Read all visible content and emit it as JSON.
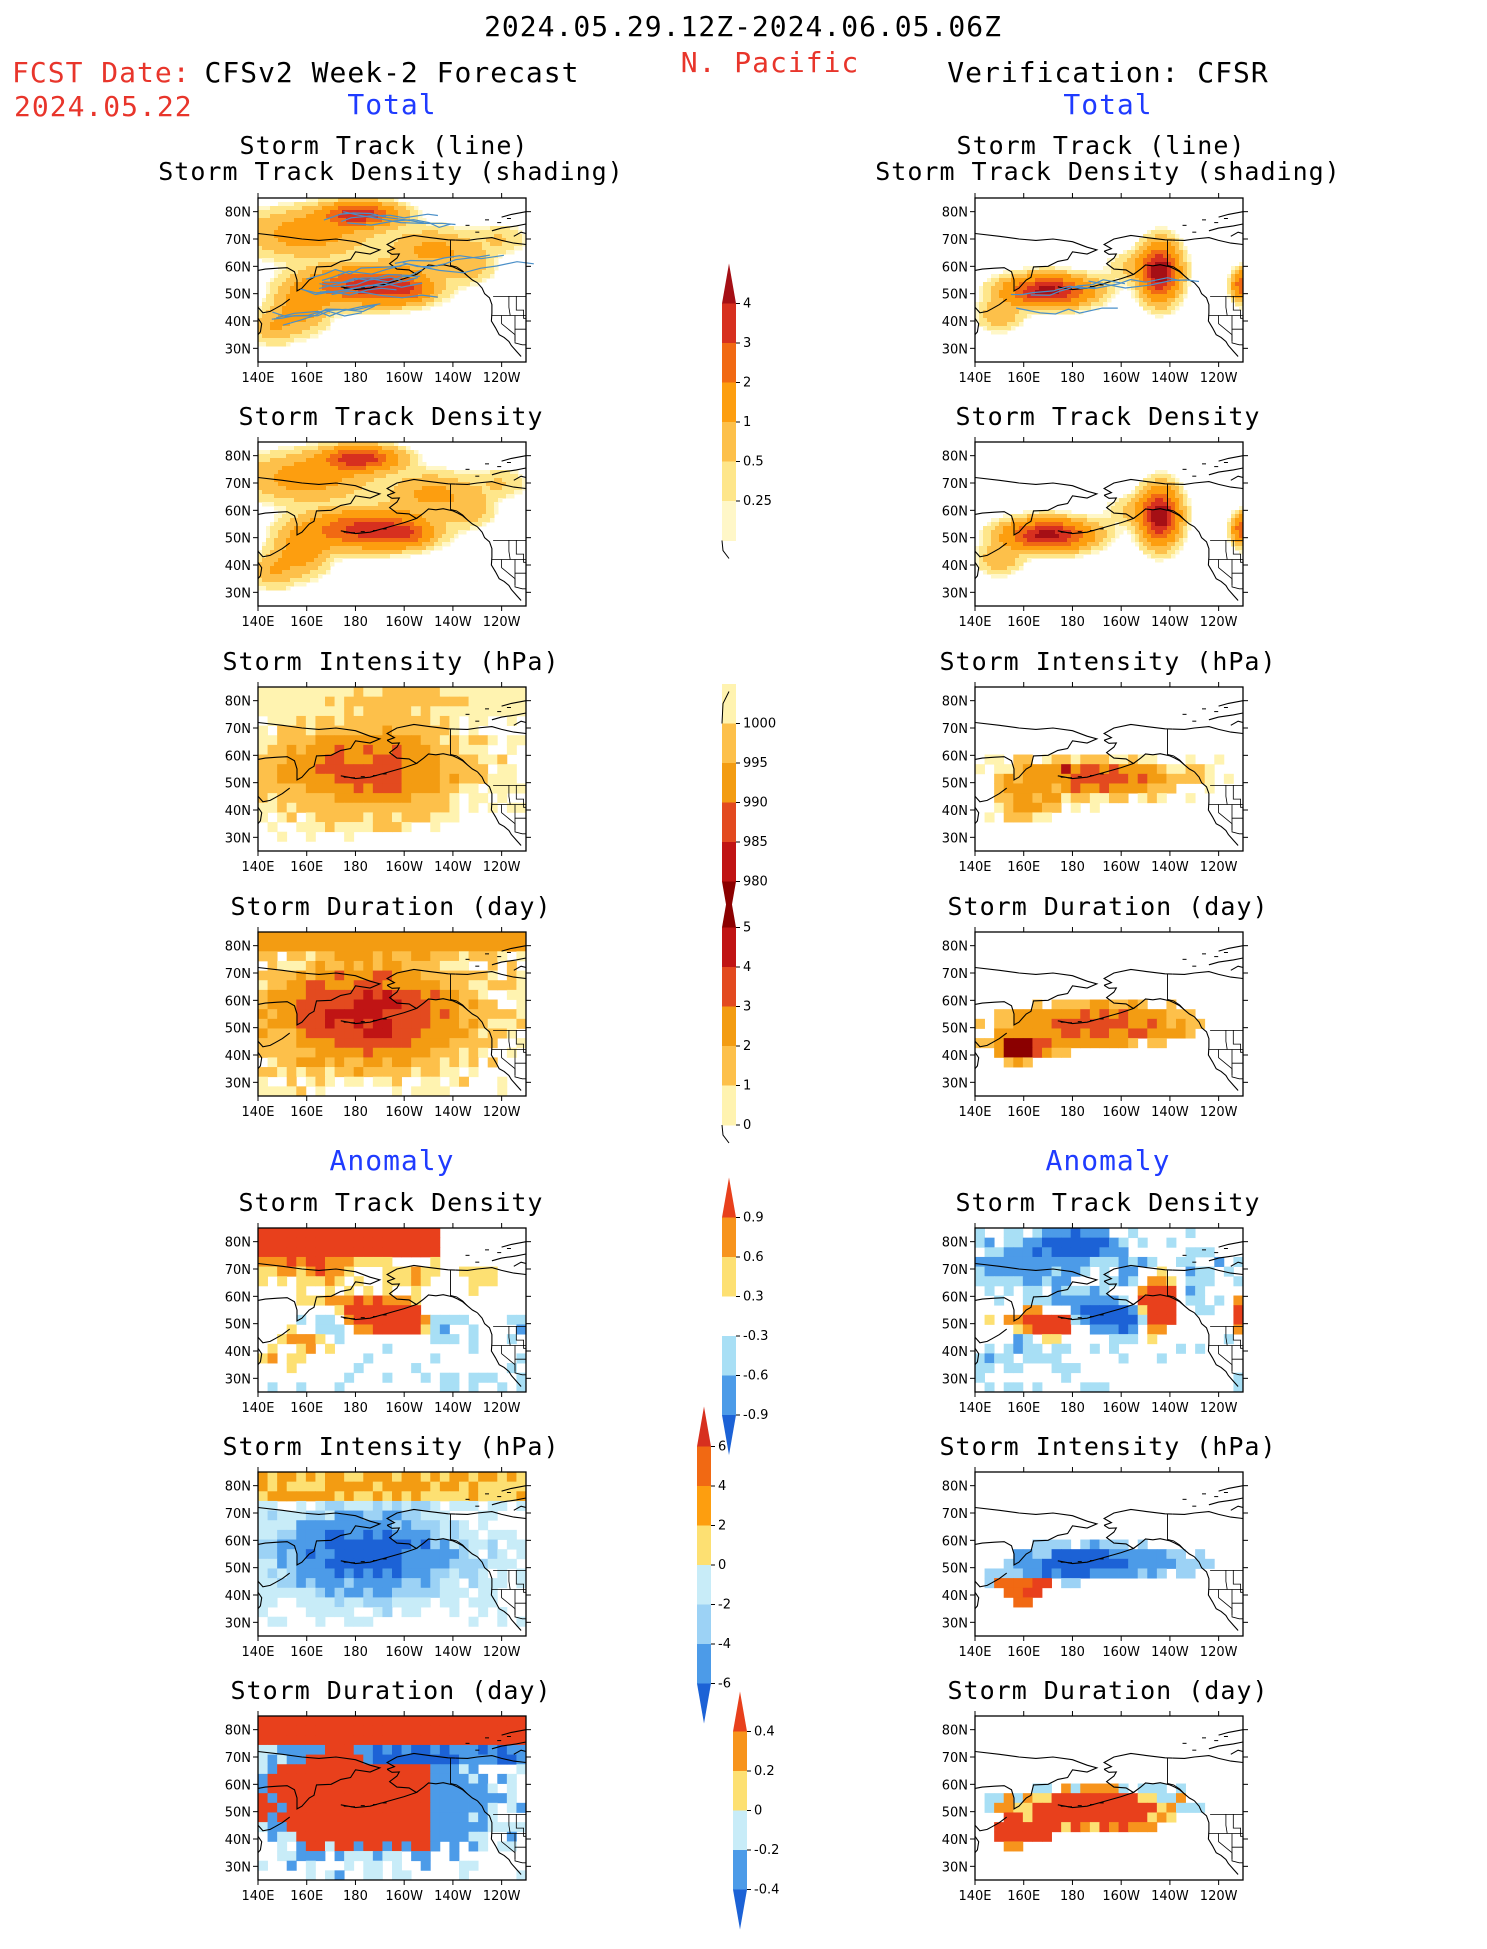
{
  "header": {
    "date_range": "2024.05.29.12Z-2024.06.05.06Z",
    "region": "N. Pacific",
    "fcst_label": "FCST Date:",
    "fcst_date": "2024.05.22",
    "left_title": "CFSv2 Week-2 Forecast",
    "right_title": "Verification: CFSR"
  },
  "sections": {
    "total": "Total",
    "anomaly": "Anomaly"
  },
  "panel_titles": {
    "track_line": "Storm Track (line)",
    "track_shading": "Storm Track Density (shading)",
    "density": "Storm Track Density",
    "intensity": "Storm Intensity (hPa)",
    "duration": "Storm Duration (day)"
  },
  "map_axes": {
    "y_labels": [
      "80N",
      "70N",
      "60N",
      "50N",
      "40N",
      "30N"
    ],
    "x_labels": [
      "140E",
      "160E",
      "180",
      "160W",
      "140W",
      "120W"
    ]
  },
  "colorbars": {
    "density": {
      "labels": [
        "4",
        "3",
        "2",
        "1",
        "0.5",
        "0.25"
      ],
      "colors": [
        "#a50f15",
        "#d7301f",
        "#f16913",
        "#fd9e0f",
        "#fdc04a",
        "#fee68a",
        "#fff7c8"
      ]
    },
    "intensity": {
      "labels": [
        "1000",
        "995",
        "990",
        "985",
        "980"
      ],
      "colors": [
        "#fff3b0",
        "#fdc04a",
        "#f39c12",
        "#e34a1f",
        "#c01414",
        "#8b0000"
      ]
    },
    "duration": {
      "labels": [
        "5",
        "4",
        "3",
        "2",
        "1",
        "0"
      ],
      "colors": [
        "#8b0000",
        "#c01414",
        "#e34a1f",
        "#f39c12",
        "#fdc04a",
        "#fff3b0"
      ]
    },
    "anom_density": {
      "labels": [
        "0.9",
        "0.6",
        "0.3",
        "-0.3",
        "-0.6",
        "-0.9"
      ],
      "colors": [
        "#e8401c",
        "#f7941d",
        "#fde072",
        "#ffffff",
        "#a8dff5",
        "#4c9be8",
        "#1c62d6"
      ]
    },
    "anom_intensity": {
      "labels": [
        "6",
        "4",
        "2",
        "0",
        "-2",
        "-4",
        "-6"
      ],
      "colors": [
        "#d7301f",
        "#f16913",
        "#fd9e0f",
        "#fde072",
        "#c8ecf8",
        "#9cd2f5",
        "#4c9be8",
        "#1c62d6"
      ]
    },
    "anom_duration": {
      "labels": [
        "0.4",
        "0.2",
        "0",
        "-0.2",
        "-0.4"
      ],
      "colors": [
        "#e8401c",
        "#f7941d",
        "#fde072",
        "#c8ecf8",
        "#4c9be8",
        "#1c62d6"
      ]
    }
  },
  "palette": {
    "red_text": "#e8352b",
    "blue_text": "#1f3bff",
    "track_line": "#4a8fc8"
  }
}
